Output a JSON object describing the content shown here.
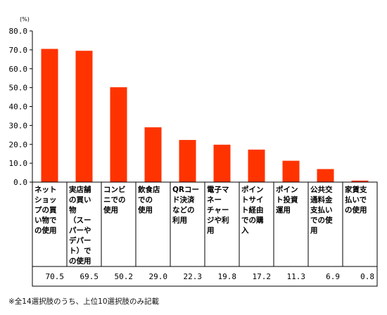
{
  "chart_data": {
    "type": "bar",
    "unit": "(%)",
    "ylim": [
      0,
      80
    ],
    "yticks": [
      "0.0",
      "10.0",
      "20.0",
      "30.0",
      "40.0",
      "50.0",
      "60.0",
      "70.0",
      "80.0"
    ],
    "categories": [
      [
        "ネット",
        "ショッ",
        "プの買",
        "い物で",
        "の使用"
      ],
      [
        "実店舗",
        "の買い",
        "物",
        "（スー",
        "パーや",
        "デパー",
        "ト）で",
        "の使用"
      ],
      [
        "コンビ",
        "ニでの",
        "使用"
      ],
      [
        "飲食店",
        "での",
        "使用"
      ],
      [
        "QRコー",
        "ド決済",
        "などの",
        "利用"
      ],
      [
        "電子マ",
        "ネー",
        "チャー",
        "ジや利",
        "用"
      ],
      [
        "ポイン",
        "トサイ",
        "ト経由",
        "での購",
        "入"
      ],
      [
        "ポイン",
        "ト投資",
        "運用"
      ],
      [
        "公共交",
        "通料金",
        "支払い",
        "での使",
        "用"
      ],
      [
        "家賃支",
        "払いで",
        "の使用"
      ]
    ],
    "values": [
      70.5,
      69.5,
      50.2,
      29.0,
      22.3,
      19.8,
      17.2,
      11.3,
      6.9,
      0.8
    ],
    "value_labels": [
      "70.5",
      "69.5",
      "50.2",
      "29.0",
      "22.3",
      "19.8",
      "17.2",
      "11.3",
      "6.9",
      "0.8"
    ],
    "bar_color": "#ff3300"
  },
  "footnote": "※全14選択肢のうち、上位10選択肢のみ記載"
}
